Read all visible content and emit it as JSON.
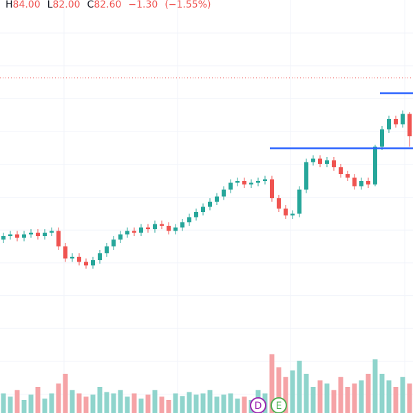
{
  "chart_data": {
    "type": "candlestick",
    "legend": {
      "high_prefix": "H",
      "high": {
        "value": 84.0,
        "label": "84.00"
      },
      "low_prefix": "L",
      "low": {
        "value": 82.0,
        "label": "82.00"
      },
      "close_prefix": "C",
      "close": {
        "value": 82.6,
        "label": "82.60"
      },
      "change": {
        "value": -1.3,
        "label": "−1.30"
      },
      "change_pct": {
        "value": -1.55,
        "label": "(−1.55%)"
      }
    },
    "ylim": [
      68.92,
      90.52
    ],
    "volume_ylim": [
      0,
      100
    ],
    "grid": true,
    "up_color": "#26a69a",
    "down_color": "#ef5350",
    "up_volume_color": "#8fd4cc",
    "down_volume_color": "#f5a3a6",
    "open": [
      76.6,
      76.8,
      76.9,
      76.7,
      76.9,
      77.0,
      76.8,
      77.0,
      77.1,
      76.2,
      75.5,
      75.6,
      75.3,
      75.1,
      75.4,
      75.8,
      76.2,
      76.6,
      76.9,
      77.1,
      77.0,
      77.3,
      77.2,
      77.5,
      77.4,
      77.1,
      77.3,
      77.6,
      77.9,
      78.2,
      78.5,
      78.8,
      79.1,
      79.5,
      79.9,
      80.0,
      79.8,
      79.9,
      80.0,
      80.1,
      79.0,
      78.4,
      78.0,
      78.1,
      79.5,
      81.1,
      81.3,
      81.0,
      81.2,
      80.8,
      80.4,
      80.2,
      79.7,
      80.0,
      79.8,
      82.0,
      83.0,
      83.6,
      83.3,
      83.9
    ],
    "high": [
      77.0,
      77.1,
      77.1,
      77.1,
      77.2,
      77.2,
      77.2,
      77.3,
      77.3,
      76.4,
      75.8,
      75.8,
      75.5,
      75.6,
      76.0,
      76.4,
      76.8,
      77.1,
      77.3,
      77.3,
      77.5,
      77.5,
      77.7,
      77.7,
      77.6,
      77.5,
      77.8,
      78.1,
      78.4,
      78.7,
      79.0,
      79.3,
      79.7,
      80.1,
      80.2,
      80.2,
      80.1,
      80.2,
      80.3,
      80.3,
      79.2,
      78.6,
      78.3,
      79.7,
      81.3,
      81.5,
      81.5,
      81.4,
      81.4,
      81.0,
      80.6,
      80.4,
      80.2,
      80.2,
      82.1,
      83.2,
      83.8,
      83.8,
      84.1,
      84.0
    ],
    "low": [
      76.4,
      76.6,
      76.5,
      76.5,
      76.7,
      76.6,
      76.6,
      76.8,
      76.0,
      75.3,
      75.3,
      75.1,
      74.9,
      74.9,
      75.2,
      75.6,
      76.0,
      76.4,
      76.7,
      76.8,
      76.8,
      77.0,
      77.0,
      77.2,
      76.9,
      76.9,
      77.1,
      77.4,
      77.7,
      78.0,
      78.3,
      78.6,
      78.9,
      79.3,
      79.7,
      79.6,
      79.6,
      79.7,
      79.8,
      78.8,
      78.2,
      77.8,
      77.8,
      77.9,
      79.3,
      80.9,
      80.8,
      80.8,
      80.6,
      80.2,
      80.0,
      79.5,
      79.5,
      79.6,
      79.7,
      81.8,
      82.8,
      83.1,
      83.1,
      82.0
    ],
    "close": [
      76.8,
      76.9,
      76.7,
      76.9,
      77.0,
      76.8,
      77.0,
      77.1,
      76.2,
      75.5,
      75.6,
      75.3,
      75.1,
      75.4,
      75.8,
      76.2,
      76.6,
      76.9,
      77.1,
      77.0,
      77.3,
      77.2,
      77.5,
      77.4,
      77.1,
      77.3,
      77.6,
      77.9,
      78.2,
      78.5,
      78.8,
      79.1,
      79.5,
      79.9,
      80.0,
      79.8,
      79.9,
      80.0,
      80.1,
      79.0,
      78.4,
      78.0,
      78.1,
      79.5,
      81.1,
      81.3,
      81.0,
      81.2,
      80.8,
      80.4,
      80.2,
      79.7,
      80.0,
      79.8,
      82.0,
      83.0,
      83.6,
      83.3,
      83.9,
      82.6
    ],
    "volume": [
      30,
      25,
      35,
      20,
      28,
      40,
      22,
      30,
      45,
      60,
      35,
      30,
      25,
      28,
      40,
      32,
      30,
      35,
      25,
      30,
      22,
      28,
      35,
      25,
      20,
      30,
      26,
      32,
      28,
      30,
      35,
      25,
      28,
      30,
      22,
      25,
      20,
      35,
      30,
      90,
      70,
      55,
      65,
      80,
      60,
      40,
      50,
      45,
      35,
      55,
      40,
      45,
      50,
      60,
      82,
      60,
      50,
      40,
      55,
      45
    ],
    "price_line": {
      "value": 86.0,
      "color": "#ef5350"
    },
    "drawn_lines": [
      {
        "value": 81.9,
        "start": 39,
        "color": "#2962ff"
      },
      {
        "value": 85.1,
        "start": 55,
        "color": "#2962ff"
      }
    ],
    "events": [
      {
        "label": "D",
        "index": 37,
        "color": "#9c27b0"
      },
      {
        "label": "E",
        "index": 40,
        "color": "#4caf50"
      }
    ]
  }
}
